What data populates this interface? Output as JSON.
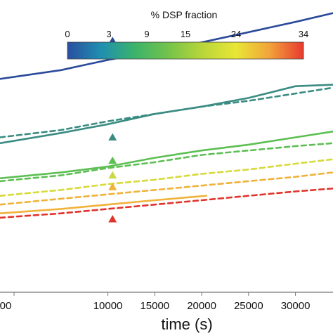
{
  "chart_data": {
    "type": "line",
    "xlabel": "time (s)",
    "ylabel": "",
    "xlim": [
      -1500,
      34000
    ],
    "ylim": [
      0,
      100
    ],
    "x_ticks": [
      0,
      10000,
      15000,
      20000,
      25000,
      30000
    ],
    "x_tick_labels": [
      "00",
      "10000",
      "15000",
      "20000",
      "25000",
      "30000"
    ],
    "colorbar": {
      "title": "% DSP fraction",
      "ticks": [
        "0",
        "3",
        "9",
        "15",
        "24",
        "34"
      ],
      "colors": [
        "#2a4ea0",
        "#1f8fb0",
        "#3cb36a",
        "#74c34a",
        "#b9d63a",
        "#e9e636",
        "#f2a23a",
        "#e83a2e"
      ]
    },
    "series": [
      {
        "color": "#2b4a9a",
        "dash": "solid",
        "x": [
          -1500,
          5000,
          10000,
          15000,
          20000,
          25000,
          30000,
          34000
        ],
        "y": [
          73,
          76,
          79.5,
          82.5,
          85.5,
          89,
          92.5,
          95.5
        ]
      },
      {
        "color": "#3a8c82",
        "dash": "solid",
        "x": [
          -1500,
          5000,
          10000,
          15000,
          20000,
          25000,
          30000,
          34000
        ],
        "y": [
          51,
          54.5,
          57.5,
          61,
          63.5,
          66.5,
          70.5,
          71
        ]
      },
      {
        "color": "#3a8c82",
        "dash": "dashed",
        "x": [
          -1500,
          5000,
          10000,
          15000,
          20000,
          25000,
          30000,
          34000
        ],
        "y": [
          53,
          55.5,
          58.5,
          61,
          63.5,
          65.5,
          68,
          70
        ]
      },
      {
        "color": "#5cbf52",
        "dash": "solid",
        "x": [
          -1500,
          5000,
          10000,
          15000,
          20000,
          25000,
          30000,
          34000
        ],
        "y": [
          39,
          41,
          43,
          46,
          48.5,
          50.5,
          53,
          55
        ]
      },
      {
        "color": "#5cbf52",
        "dash": "dashed",
        "x": [
          -1500,
          5000,
          10000,
          15000,
          20000,
          25000,
          30000,
          34000
        ],
        "y": [
          38,
          40,
          42.5,
          44.5,
          47,
          48.5,
          50,
          51
        ]
      },
      {
        "color": "#d6da3a",
        "dash": "dashed",
        "x": [
          -1500,
          5000,
          10000,
          15000,
          20000,
          25000,
          30000,
          34000
        ],
        "y": [
          33,
          35,
          37,
          38.5,
          40.5,
          42,
          44,
          45.5
        ]
      },
      {
        "color": "#f0b23a",
        "dash": "dashed",
        "x": [
          -1500,
          5000,
          10000,
          15000,
          20000,
          25000,
          30000,
          34000
        ],
        "y": [
          30,
          32,
          33.5,
          35,
          36.5,
          38,
          39.5,
          41
        ]
      },
      {
        "color": "#f0b23a",
        "dash": "solid",
        "x": [
          -1500,
          5000,
          10000,
          15000,
          20500
        ],
        "y": [
          27,
          28.5,
          30,
          31.5,
          33
        ]
      },
      {
        "color": "#e0342a",
        "dash": "dashed",
        "x": [
          -1500,
          5000,
          10000,
          15000,
          20000,
          25000,
          30000,
          34000
        ],
        "y": [
          25.5,
          27,
          28.5,
          30,
          31.5,
          33,
          34.5,
          35.5
        ]
      }
    ],
    "markers": [
      {
        "x": 10500,
        "y": 86,
        "color": "#2b4a9a"
      },
      {
        "x": 10500,
        "y": 53,
        "color": "#3a8c82"
      },
      {
        "x": 10500,
        "y": 45,
        "color": "#5cbf52"
      },
      {
        "x": 10500,
        "y": 40,
        "color": "#c9d846"
      },
      {
        "x": 10500,
        "y": 36,
        "color": "#f0b23a"
      },
      {
        "x": 10500,
        "y": 25,
        "color": "#e0342a"
      }
    ]
  }
}
